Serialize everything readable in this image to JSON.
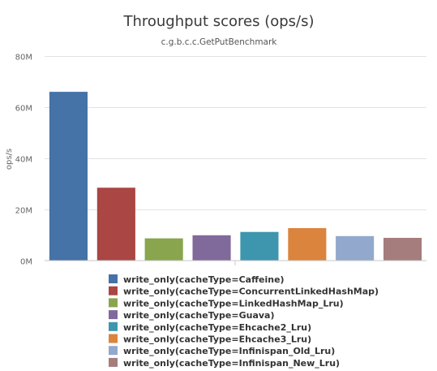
{
  "chart_data": {
    "type": "bar",
    "title": "Throughput scores (ops/s)",
    "subtitle": "c.g.b.c.c.GetPutBenchmark",
    "ylabel": "ops/s",
    "xlabel": "",
    "ylim": [
      0,
      80000000
    ],
    "y_ticks": [
      {
        "value": 0,
        "label": "0M"
      },
      {
        "value": 20000000,
        "label": "20M"
      },
      {
        "value": 40000000,
        "label": "40M"
      },
      {
        "value": 60000000,
        "label": "60M"
      },
      {
        "value": 80000000,
        "label": "80M"
      }
    ],
    "grid": true,
    "legend_position": "bottom",
    "series": [
      {
        "name": "write_only(cacheType=Caffeine)",
        "value": 66000000,
        "color": "#4572a7"
      },
      {
        "name": "write_only(cacheType=ConcurrentLinkedHashMap)",
        "value": 28500000,
        "color": "#aa4643"
      },
      {
        "name": "write_only(cacheType=LinkedHashMap_Lru)",
        "value": 8700000,
        "color": "#89a54e"
      },
      {
        "name": "write_only(cacheType=Guava)",
        "value": 9900000,
        "color": "#80699b"
      },
      {
        "name": "write_only(cacheType=Ehcache2_Lru)",
        "value": 11200000,
        "color": "#3d96ae"
      },
      {
        "name": "write_only(cacheType=Ehcache3_Lru)",
        "value": 12700000,
        "color": "#db843d"
      },
      {
        "name": "write_only(cacheType=Infinispan_Old_Lru)",
        "value": 9600000,
        "color": "#92a8cd"
      },
      {
        "name": "write_only(cacheType=Infinispan_New_Lru)",
        "value": 8900000,
        "color": "#a47d7c"
      }
    ]
  }
}
